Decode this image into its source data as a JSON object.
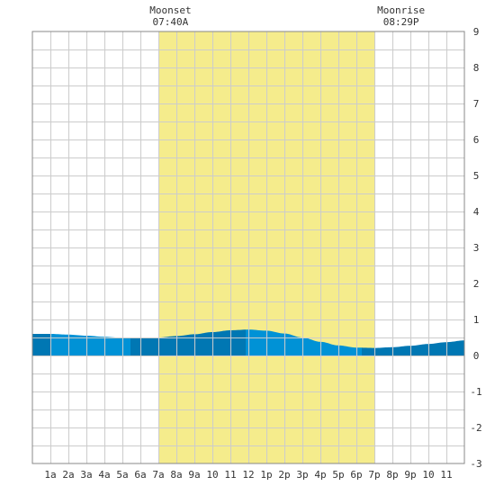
{
  "chart_data": {
    "type": "area",
    "x_unit": "hour of day",
    "x_tick_labels": [
      "1a",
      "2a",
      "3a",
      "4a",
      "5a",
      "6a",
      "7a",
      "8a",
      "9a",
      "10",
      "11",
      "12",
      "1p",
      "2p",
      "3p",
      "4p",
      "5p",
      "6p",
      "7p",
      "8p",
      "9p",
      "10",
      "11"
    ],
    "y_tick_labels": [
      "9",
      "8",
      "7",
      "6",
      "5",
      "4",
      "3",
      "2",
      "1",
      "0",
      "-1",
      "-2",
      "-3"
    ],
    "xlim": [
      0,
      24
    ],
    "ylim": [
      -3,
      9
    ],
    "grid": true,
    "daylight_band": {
      "start_hour": 7.0,
      "end_hour": 19.0,
      "color": "#f5ec8c"
    },
    "moon_events": [
      {
        "label": "Moonset",
        "time": "07:40A",
        "hour": 7.67
      },
      {
        "label": "Moonrise",
        "time": "08:29P",
        "hour": 20.48
      }
    ],
    "tide_series": {
      "x": [
        0,
        1,
        2,
        3,
        4,
        5,
        6,
        7,
        8,
        9,
        10,
        11,
        12,
        13,
        14,
        15,
        16,
        17,
        18,
        19,
        20,
        21,
        22,
        23,
        24
      ],
      "y": [
        0.6,
        0.6,
        0.58,
        0.55,
        0.52,
        0.49,
        0.48,
        0.5,
        0.54,
        0.59,
        0.65,
        0.7,
        0.72,
        0.69,
        0.61,
        0.5,
        0.38,
        0.28,
        0.22,
        0.21,
        0.23,
        0.27,
        0.32,
        0.37,
        0.42
      ]
    },
    "shade_segments": [
      {
        "start": 0.0,
        "end": 1.0,
        "color": "#0077b3"
      },
      {
        "start": 1.0,
        "end": 5.45,
        "color": "#0092d6"
      },
      {
        "start": 5.45,
        "end": 11.85,
        "color": "#0077b3"
      },
      {
        "start": 11.85,
        "end": 18.3,
        "color": "#0092d6"
      },
      {
        "start": 18.3,
        "end": 24.0,
        "color": "#0077b3"
      }
    ]
  }
}
